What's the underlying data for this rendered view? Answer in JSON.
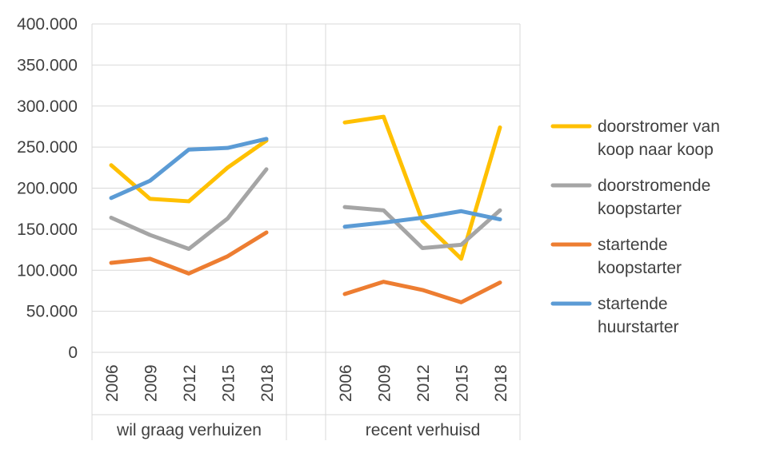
{
  "chart_data": {
    "type": "line",
    "ylim": [
      0,
      400000
    ],
    "y_ticks": [
      0,
      50000,
      100000,
      150000,
      200000,
      250000,
      300000,
      350000,
      400000
    ],
    "y_tick_labels": [
      "0",
      "50.000",
      "100.000",
      "150.000",
      "200.000",
      "250.000",
      "300.000",
      "350.000",
      "400.000"
    ],
    "grid": true,
    "legend_position": "right",
    "groups": [
      {
        "label": "wil graag verhuizen",
        "categories": [
          "2006",
          "2009",
          "2012",
          "2015",
          "2018"
        ]
      },
      {
        "label": "recent verhuisd",
        "categories": [
          "2006",
          "2009",
          "2012",
          "2015",
          "2018"
        ]
      }
    ],
    "series": [
      {
        "name": "doorstromer van koop naar koop",
        "legend_lines": [
          "doorstromer van",
          "koop naar koop"
        ],
        "color": "#ffc000",
        "values": [
          [
            228000,
            187000,
            184000,
            225000,
            258000
          ],
          [
            280000,
            287000,
            160000,
            114000,
            274000
          ]
        ]
      },
      {
        "name": "doorstromende koopstarter",
        "legend_lines": [
          "doorstromende",
          "koopstarter"
        ],
        "color": "#a5a5a5",
        "values": [
          [
            164000,
            143000,
            126000,
            163000,
            223000
          ],
          [
            177000,
            173000,
            127000,
            131000,
            173000
          ]
        ]
      },
      {
        "name": "startende koopstarter",
        "legend_lines": [
          "startende",
          "koopstarter"
        ],
        "color": "#ed7d31",
        "values": [
          [
            109000,
            114000,
            96000,
            117000,
            146000
          ],
          [
            71000,
            86000,
            76000,
            61000,
            85000
          ]
        ]
      },
      {
        "name": "startende huurstarter",
        "legend_lines": [
          "startende",
          "huurstarter"
        ],
        "color": "#5b9bd5",
        "values": [
          [
            188000,
            209000,
            247000,
            249000,
            260000
          ],
          [
            153000,
            158000,
            164000,
            172000,
            162000
          ]
        ]
      }
    ]
  }
}
